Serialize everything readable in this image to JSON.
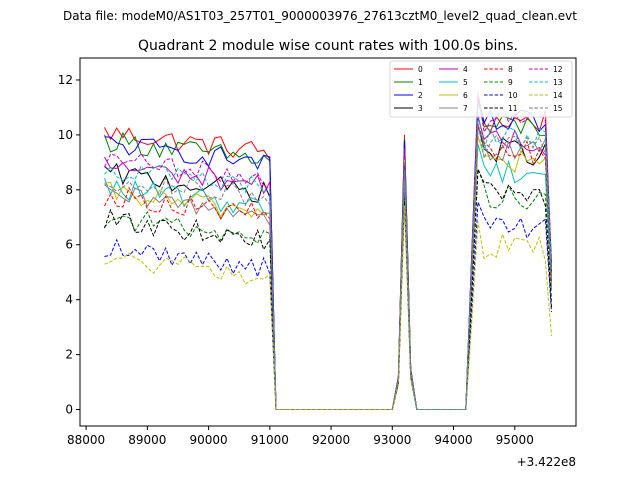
{
  "suptitle": "Data file: modeM0/AS1T03_257T01_9000003976_27613cztM0_level2_quad_clean.evt",
  "chart_data": {
    "type": "line",
    "title": "Quadrant 2 module wise count rates with 100.0s bins.",
    "xlabel": "",
    "ylabel": "",
    "x_offset_label": "+3.422e8",
    "xlim": [
      87900,
      96000
    ],
    "ylim": [
      -0.6,
      12.8
    ],
    "xticks": [
      88000,
      89000,
      90000,
      91000,
      92000,
      93000,
      94000,
      95000
    ],
    "yticks": [
      0,
      2,
      4,
      6,
      8,
      10,
      12
    ],
    "x_start": 88300,
    "x_step": 100,
    "segments": [
      {
        "start": 88300,
        "end": 91000,
        "kind": "active"
      },
      {
        "start": 91000,
        "end": 91100,
        "kind": "drop"
      },
      {
        "start": 91100,
        "end": 93000,
        "kind": "zero"
      },
      {
        "start": 93000,
        "end": 93400,
        "kind": "spike",
        "peak_x": 93200
      },
      {
        "start": 93400,
        "end": 94200,
        "kind": "zero"
      },
      {
        "start": 94200,
        "end": 95600,
        "kind": "active"
      }
    ],
    "legend_position": "upper right",
    "series": [
      {
        "name": "0",
        "color": "#ff0000",
        "dash": "solid",
        "level_a": 10.1,
        "level_b": 10.5,
        "spike": 10.0
      },
      {
        "name": "1",
        "color": "#008000",
        "dash": "solid",
        "level_a": 9.8,
        "level_b": 10.3,
        "spike": 9.9
      },
      {
        "name": "2",
        "color": "#0000ff",
        "dash": "solid",
        "level_a": 9.7,
        "level_b": 10.4,
        "spike": 9.8
      },
      {
        "name": "3",
        "color": "#000000",
        "dash": "solid",
        "level_a": 8.6,
        "level_b": 9.4,
        "spike": 9.3
      },
      {
        "name": "4",
        "color": "#bf00bf",
        "dash": "solid",
        "level_a": 8.9,
        "level_b": 9.7,
        "spike": 9.5
      },
      {
        "name": "5",
        "color": "#00bfbf",
        "dash": "solid",
        "level_a": 8.1,
        "level_b": 8.7,
        "spike": 9.0
      },
      {
        "name": "6",
        "color": "#bfbf00",
        "dash": "solid",
        "level_a": 7.9,
        "level_b": 9.0,
        "spike": 9.1
      },
      {
        "name": "7",
        "color": "#808080",
        "dash": "solid",
        "level_a": 7.8,
        "level_b": 9.4,
        "spike": 9.0
      },
      {
        "name": "8",
        "color": "#ff0000",
        "dash": "dashed",
        "level_a": 7.8,
        "level_b": 9.4,
        "spike": 8.8
      },
      {
        "name": "9",
        "color": "#008000",
        "dash": "dashed",
        "level_a": 7.0,
        "level_b": 7.8,
        "spike": 8.3
      },
      {
        "name": "10",
        "color": "#0000ff",
        "dash": "dashed",
        "level_a": 5.9,
        "level_b": 6.6,
        "spike": 8.0
      },
      {
        "name": "11",
        "color": "#000000",
        "dash": "dashed",
        "level_a": 6.9,
        "level_b": 7.8,
        "spike": 7.8
      },
      {
        "name": "12",
        "color": "#bf00bf",
        "dash": "dashed",
        "level_a": 9.1,
        "level_b": 10.6,
        "spike": 8.9
      },
      {
        "name": "13",
        "color": "#00bfbf",
        "dash": "dashed",
        "level_a": 8.8,
        "level_b": 9.9,
        "spike": 8.7
      },
      {
        "name": "14",
        "color": "#bfbf00",
        "dash": "dashed",
        "level_a": 5.5,
        "level_b": 5.9,
        "spike": 7.4
      },
      {
        "name": "15",
        "color": "#808080",
        "dash": "dashed",
        "level_a": 8.4,
        "level_b": 9.5,
        "spike": 8.6
      }
    ]
  }
}
